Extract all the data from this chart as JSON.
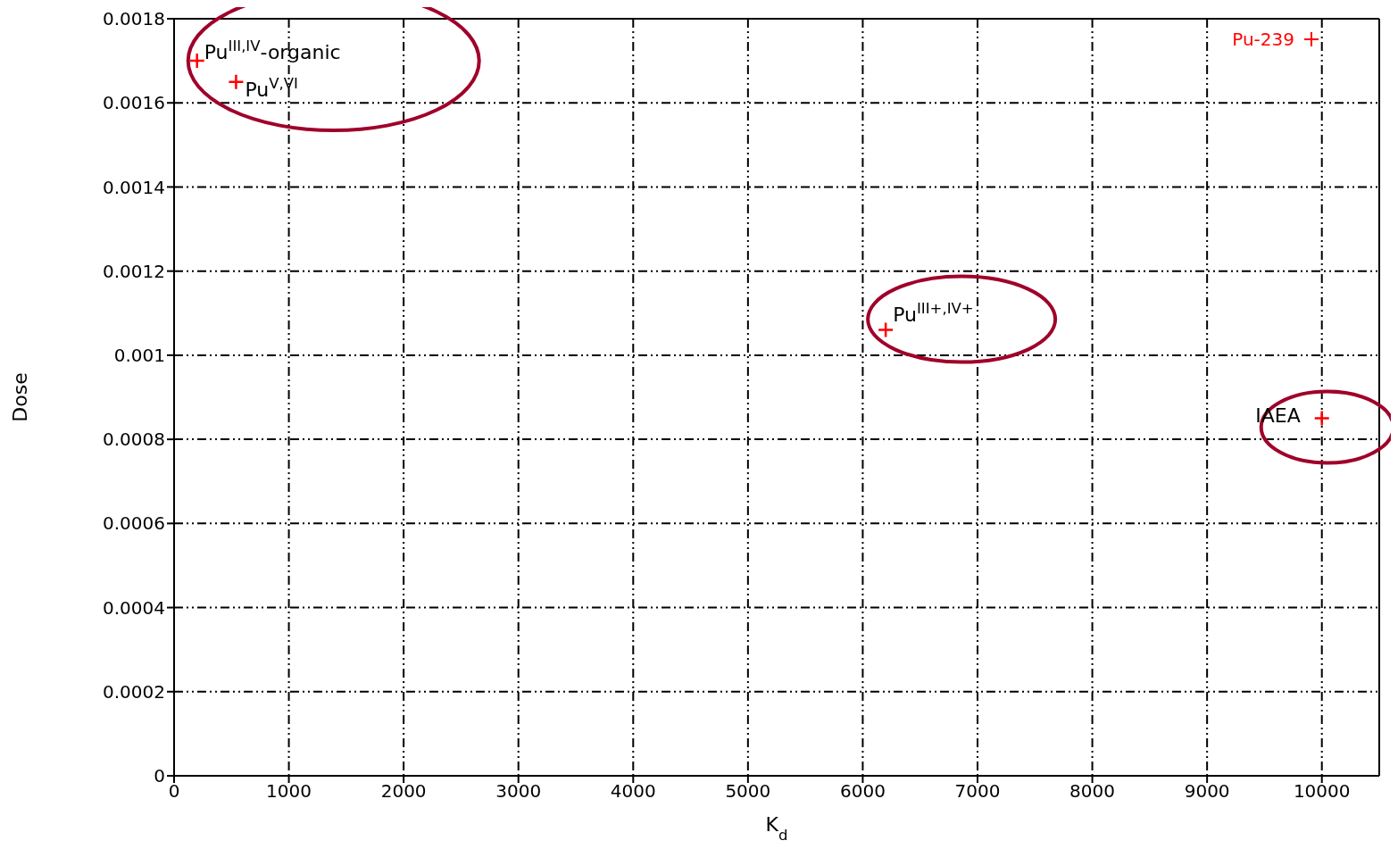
{
  "chart_data": {
    "type": "scatter",
    "xlabel": "K$_{d}$",
    "ylabel": "Dose",
    "series": [
      {
        "name": "Pu-239",
        "color": "#ff0000",
        "x": [
          200,
          540,
          6200,
          10000
        ],
        "values": [
          0.0017,
          0.00165,
          0.00106,
          0.00085
        ]
      }
    ],
    "xlim": [
      0,
      10500
    ],
    "xticks": [
      0,
      1000,
      2000,
      3000,
      4000,
      5000,
      6000,
      7000,
      8000,
      9000,
      10000
    ],
    "ylim": [
      0,
      0.0018
    ],
    "yticks": [
      0,
      0.0002,
      0.0004,
      0.0006,
      0.0008,
      0.001,
      0.0012,
      0.0014,
      0.0016,
      0.0018
    ],
    "grid": true,
    "legend": "top right",
    "marker": "cross",
    "annotations": [
      {
        "text": "Pu$^{III,IV}$-organic",
        "x": 200,
        "y": 0.0017
      },
      {
        "text": "Pu$^{V,VI}$",
        "x": 540,
        "y": 0.00165
      },
      {
        "text": "Pu$^{III+,IV+}$",
        "x": 6200,
        "y": 0.00106
      },
      {
        "text": "IAEA",
        "x": 10000,
        "y": 0.00085
      }
    ]
  }
}
